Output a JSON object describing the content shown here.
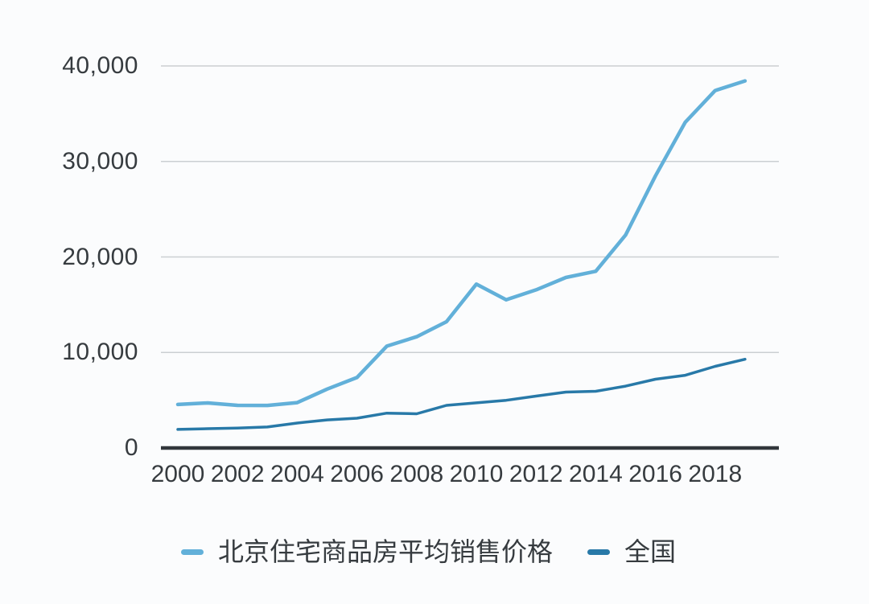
{
  "chart_data": {
    "type": "line",
    "title": "",
    "xlabel": "",
    "ylabel": "",
    "x": [
      2000,
      2001,
      2002,
      2003,
      2004,
      2005,
      2006,
      2007,
      2008,
      2009,
      2010,
      2011,
      2012,
      2013,
      2014,
      2015,
      2016,
      2017,
      2018,
      2019
    ],
    "series": [
      {
        "name": "北京住宅商品房平均销售价格",
        "color": "#62b0d9",
        "values": [
          4557,
          4716,
          4467,
          4456,
          4747,
          6162,
          7375,
          10661,
          11648,
          13224,
          17151,
          15518,
          16553,
          17854,
          18499,
          22300,
          28489,
          34117,
          37420,
          38433
        ]
      },
      {
        "name": "全国",
        "color": "#2879a8",
        "values": [
          1948,
          2017,
          2092,
          2197,
          2608,
          2937,
          3119,
          3645,
          3576,
          4459,
          4725,
          4993,
          5430,
          5850,
          5933,
          6473,
          7203,
          7614,
          8544,
          9287
        ]
      }
    ],
    "x_axis": {
      "tick_years": [
        2000,
        2002,
        2004,
        2006,
        2008,
        2010,
        2012,
        2014,
        2016,
        2018
      ],
      "tick_labels": [
        "2000",
        "2002",
        "2004",
        "2006",
        "2008",
        "2010",
        "2012",
        "2014",
        "2016",
        "2018"
      ]
    },
    "y_axis": {
      "ticks": [
        0,
        10000,
        20000,
        30000,
        40000
      ],
      "tick_labels": [
        "0",
        "10,000",
        "20,000",
        "30,000",
        "40,000"
      ]
    },
    "ylim": [
      0,
      40000
    ],
    "grid": "horizontal",
    "legend_position": "bottom"
  },
  "colors": {
    "background": "#fbfcfd",
    "grid": "#cbcfd2",
    "axis": "#32373c",
    "text": "#363b3f",
    "series_beijing": "#62b0d9",
    "series_national": "#2879a8"
  }
}
